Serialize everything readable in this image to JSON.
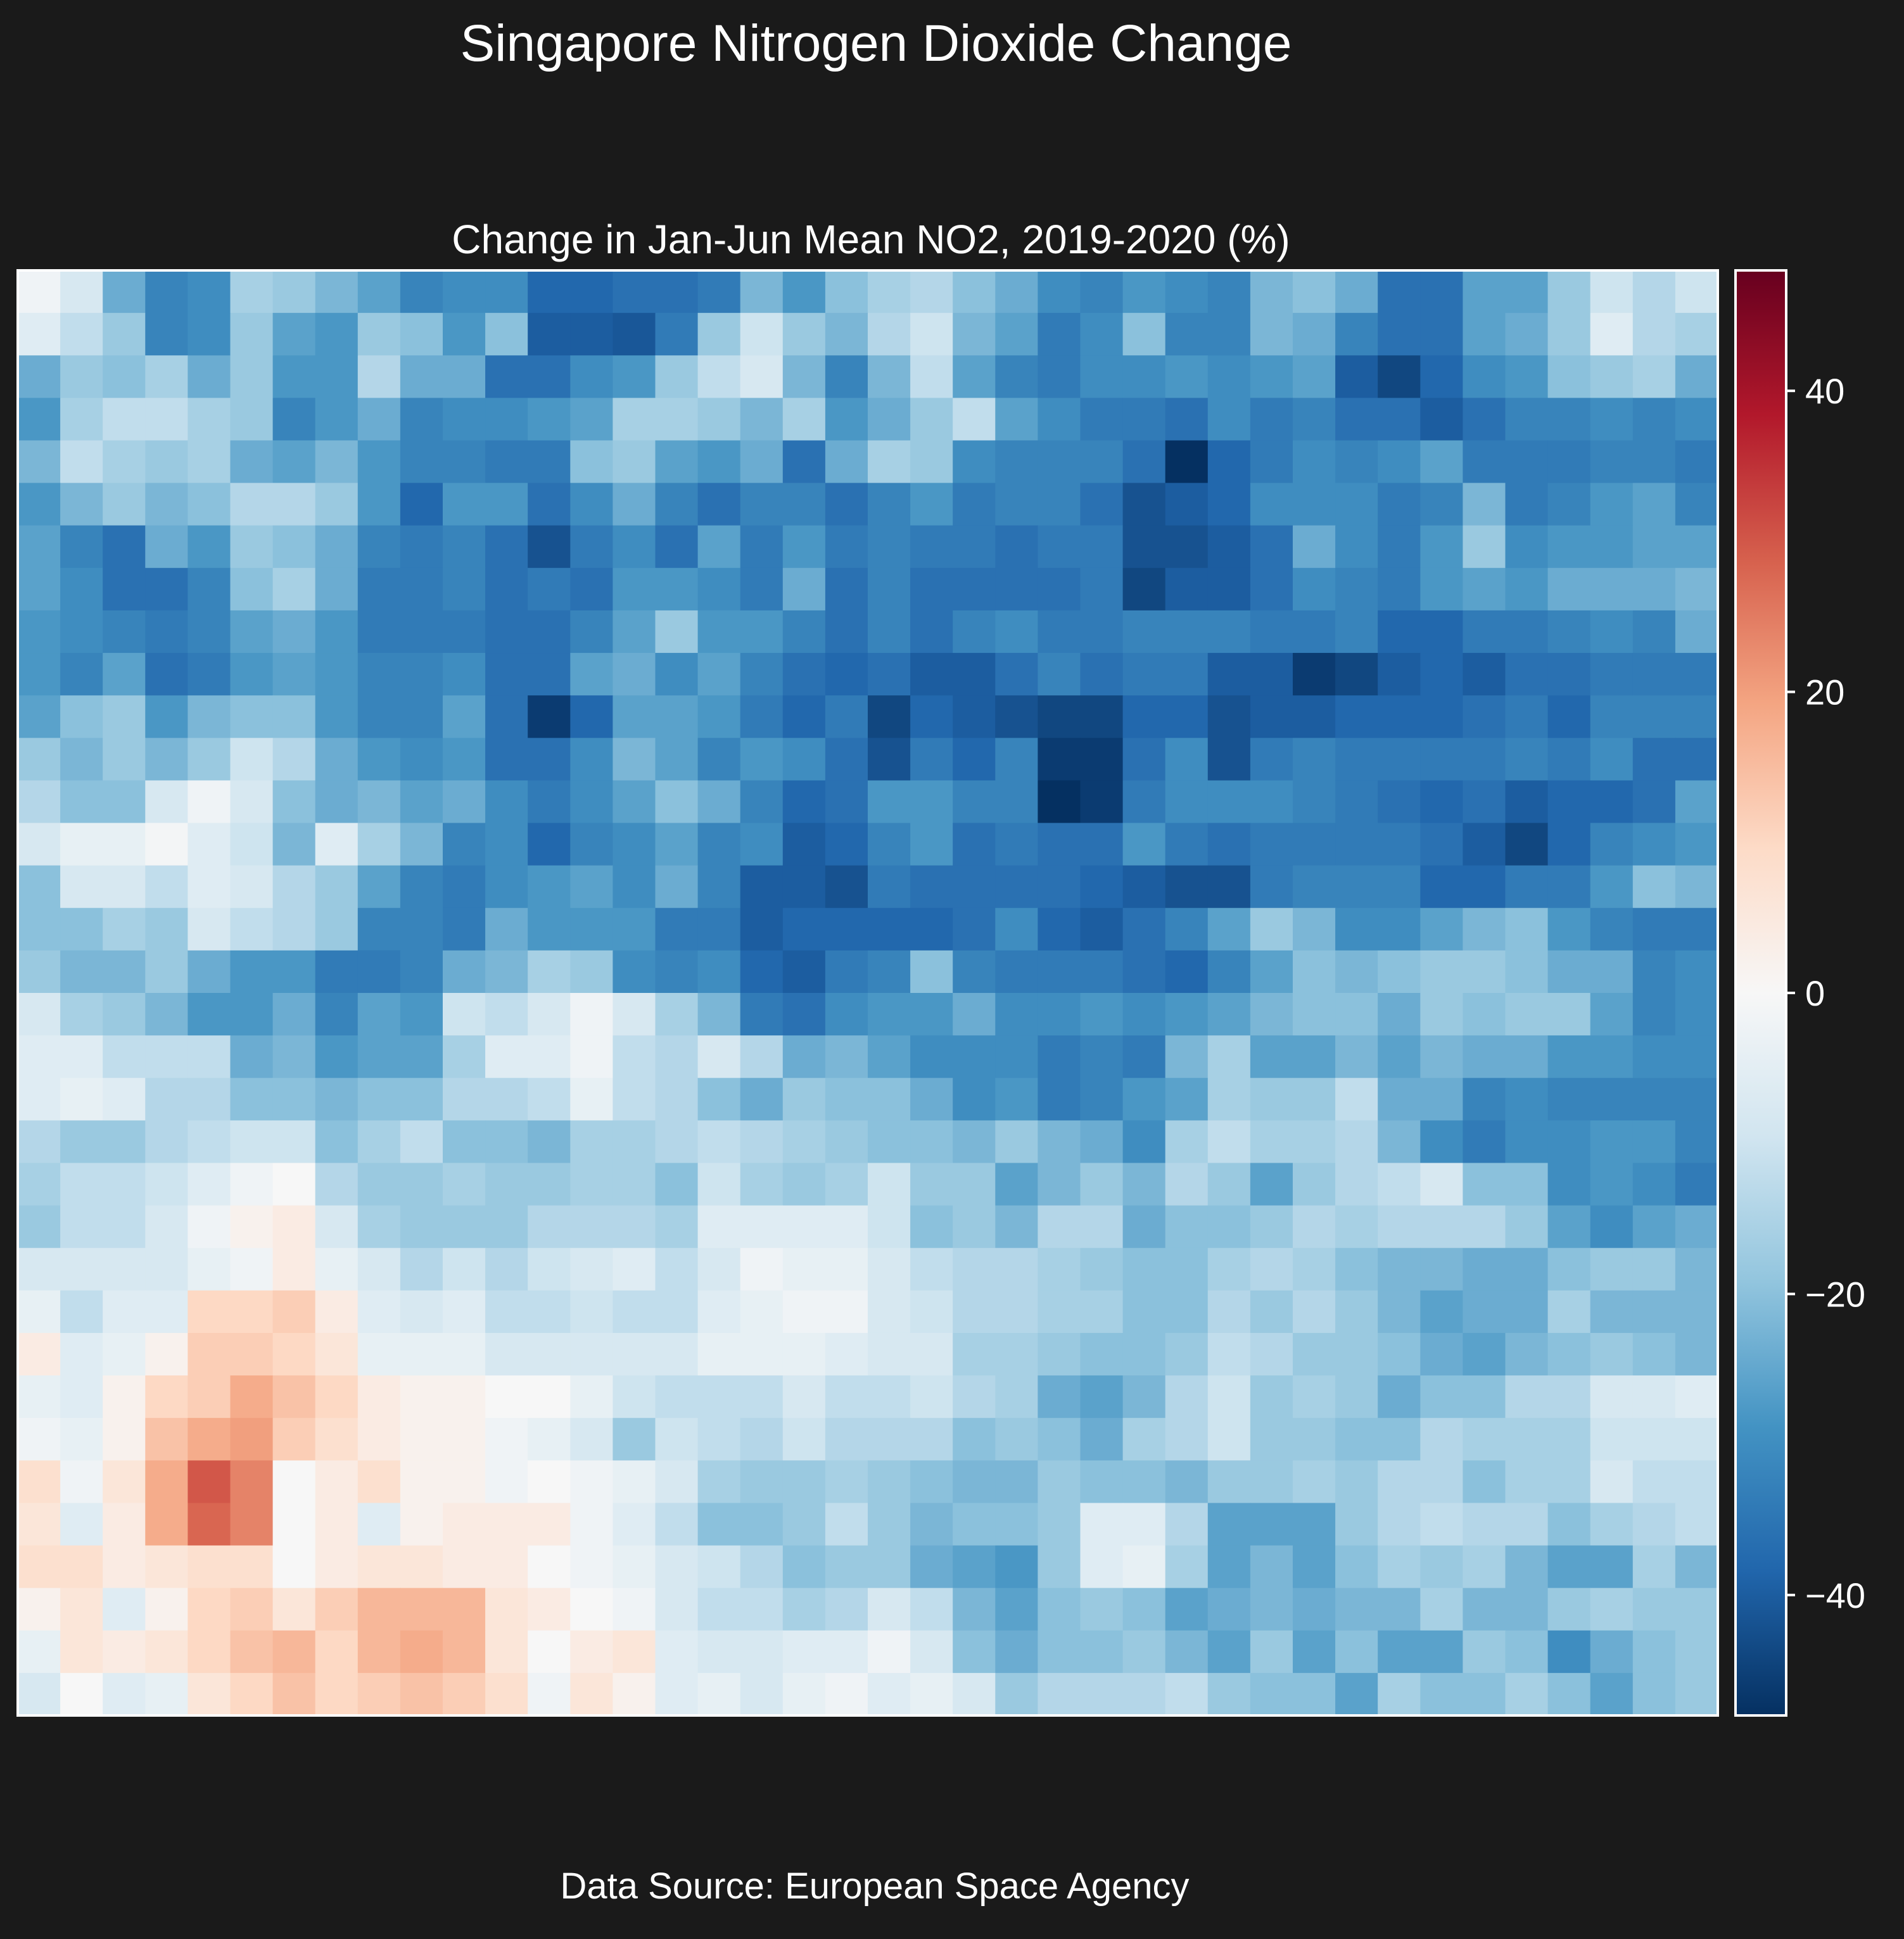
{
  "figure": {
    "suptitle": "Singapore Nitrogen Dioxide Change",
    "footer": "Data Source: European Space Agency",
    "background": "#1a1a1a"
  },
  "chart_data": {
    "type": "heatmap",
    "title": "Change in Jan-Jun Mean NO2, 2019-2020 (%)",
    "xlabel": "",
    "ylabel": "",
    "colormap": "RdBu_r",
    "colormap_stops": [
      "#053061",
      "#2166ac",
      "#4393c3",
      "#92c5de",
      "#d1e5f0",
      "#f7f7f7",
      "#fddbc7",
      "#f4a582",
      "#d6604d",
      "#b2182b",
      "#67001f"
    ],
    "vmin": -48,
    "vmax": 48,
    "colorbar_ticks": [
      -40,
      -20,
      0,
      20,
      40
    ],
    "colorbar_tick_labels": [
      "−40",
      "−20",
      "0",
      "20",
      "40"
    ],
    "grid": false,
    "n_rows": 34,
    "n_cols": 40,
    "values": [
      [
        -2,
        -8,
        -24,
        -32,
        -30,
        -16,
        -18,
        -22,
        -26,
        -32,
        -30,
        -30,
        -38,
        -38,
        -36,
        -36,
        -34,
        -22,
        -28,
        -20,
        -16,
        -14,
        -20,
        -24,
        -30,
        -32,
        -28,
        -30,
        -32,
        -22,
        -20,
        -24,
        -36,
        -36,
        -26,
        -26,
        -18,
        -10,
        -14,
        -10
      ],
      [
        -6,
        -12,
        -18,
        -32,
        -30,
        -18,
        -26,
        -28,
        -18,
        -20,
        -28,
        -20,
        -40,
        -40,
        -41,
        -34,
        -18,
        -10,
        -18,
        -22,
        -14,
        -10,
        -22,
        -26,
        -34,
        -30,
        -20,
        -32,
        -32,
        -22,
        -24,
        -32,
        -36,
        -36,
        -26,
        -24,
        -18,
        -6,
        -14,
        -16
      ],
      [
        -24,
        -18,
        -20,
        -16,
        -24,
        -18,
        -28,
        -28,
        -14,
        -24,
        -24,
        -36,
        -36,
        -30,
        -28,
        -18,
        -12,
        -8,
        -22,
        -32,
        -22,
        -12,
        -26,
        -32,
        -34,
        -30,
        -30,
        -28,
        -30,
        -28,
        -26,
        -40,
        -44,
        -38,
        -30,
        -28,
        -20,
        -18,
        -16,
        -24
      ],
      [
        -28,
        -16,
        -12,
        -12,
        -16,
        -18,
        -32,
        -28,
        -24,
        -32,
        -30,
        -30,
        -28,
        -26,
        -16,
        -16,
        -18,
        -22,
        -16,
        -28,
        -24,
        -18,
        -12,
        -26,
        -30,
        -34,
        -34,
        -36,
        -30,
        -34,
        -32,
        -36,
        -36,
        -40,
        -36,
        -32,
        -32,
        -30,
        -32,
        -30
      ],
      [
        -22,
        -12,
        -16,
        -18,
        -16,
        -24,
        -26,
        -22,
        -28,
        -32,
        -32,
        -34,
        -34,
        -20,
        -18,
        -26,
        -28,
        -24,
        -36,
        -24,
        -16,
        -18,
        -30,
        -32,
        -32,
        -32,
        -36,
        -48,
        -38,
        -34,
        -30,
        -32,
        -30,
        -26,
        -34,
        -34,
        -34,
        -32,
        -32,
        -34
      ],
      [
        -28,
        -22,
        -18,
        -22,
        -20,
        -14,
        -14,
        -18,
        -28,
        -38,
        -28,
        -28,
        -36,
        -30,
        -24,
        -32,
        -36,
        -32,
        -32,
        -36,
        -32,
        -28,
        -34,
        -32,
        -32,
        -36,
        -42,
        -40,
        -38,
        -30,
        -30,
        -30,
        -34,
        -32,
        -22,
        -34,
        -32,
        -28,
        -26,
        -32
      ],
      [
        -26,
        -32,
        -36,
        -24,
        -28,
        -18,
        -20,
        -24,
        -32,
        -34,
        -32,
        -36,
        -42,
        -34,
        -30,
        -36,
        -26,
        -34,
        -28,
        -34,
        -32,
        -34,
        -34,
        -36,
        -34,
        -34,
        -42,
        -42,
        -40,
        -36,
        -24,
        -30,
        -34,
        -28,
        -18,
        -30,
        -28,
        -28,
        -26,
        -26
      ],
      [
        -26,
        -30,
        -36,
        -36,
        -32,
        -20,
        -16,
        -24,
        -34,
        -34,
        -32,
        -36,
        -34,
        -36,
        -28,
        -28,
        -30,
        -34,
        -24,
        -36,
        -32,
        -36,
        -36,
        -36,
        -36,
        -34,
        -44,
        -40,
        -40,
        -36,
        -30,
        -32,
        -34,
        -28,
        -26,
        -28,
        -24,
        -24,
        -24,
        -22
      ],
      [
        -28,
        -30,
        -32,
        -34,
        -32,
        -26,
        -24,
        -28,
        -34,
        -34,
        -34,
        -36,
        -36,
        -32,
        -26,
        -18,
        -28,
        -28,
        -32,
        -36,
        -32,
        -36,
        -32,
        -30,
        -34,
        -34,
        -32,
        -32,
        -32,
        -34,
        -34,
        -32,
        -38,
        -38,
        -34,
        -34,
        -32,
        -30,
        -32,
        -24
      ],
      [
        -28,
        -32,
        -26,
        -36,
        -34,
        -28,
        -26,
        -28,
        -32,
        -32,
        -30,
        -36,
        -36,
        -26,
        -24,
        -30,
        -26,
        -32,
        -36,
        -38,
        -36,
        -40,
        -40,
        -36,
        -32,
        -36,
        -34,
        -34,
        -40,
        -40,
        -46,
        -44,
        -40,
        -38,
        -40,
        -36,
        -36,
        -34,
        -34,
        -34
      ],
      [
        -26,
        -20,
        -18,
        -28,
        -22,
        -20,
        -20,
        -28,
        -32,
        -32,
        -26,
        -36,
        -46,
        -38,
        -26,
        -26,
        -28,
        -34,
        -38,
        -34,
        -44,
        -38,
        -40,
        -42,
        -44,
        -44,
        -38,
        -38,
        -42,
        -40,
        -40,
        -38,
        -38,
        -38,
        -36,
        -34,
        -38,
        -32,
        -32,
        -32
      ],
      [
        -18,
        -22,
        -18,
        -22,
        -18,
        -10,
        -14,
        -24,
        -28,
        -30,
        -28,
        -36,
        -36,
        -30,
        -22,
        -26,
        -32,
        -28,
        -30,
        -36,
        -42,
        -34,
        -38,
        -32,
        -46,
        -46,
        -36,
        -30,
        -42,
        -34,
        -32,
        -34,
        -34,
        -34,
        -34,
        -32,
        -34,
        -30,
        -36,
        -36
      ],
      [
        -14,
        -20,
        -20,
        -8,
        -2,
        -8,
        -20,
        -24,
        -22,
        -26,
        -24,
        -30,
        -34,
        -30,
        -26,
        -20,
        -24,
        -32,
        -38,
        -36,
        -28,
        -28,
        -32,
        -32,
        -48,
        -46,
        -34,
        -30,
        -30,
        -30,
        -32,
        -34,
        -36,
        -38,
        -36,
        -40,
        -38,
        -38,
        -36,
        -26
      ],
      [
        -8,
        -4,
        -4,
        -1,
        -6,
        -10,
        -22,
        -6,
        -16,
        -22,
        -32,
        -30,
        -38,
        -32,
        -30,
        -26,
        -32,
        -30,
        -40,
        -38,
        -32,
        -28,
        -36,
        -34,
        -36,
        -36,
        -28,
        -34,
        -36,
        -34,
        -34,
        -34,
        -34,
        -36,
        -40,
        -44,
        -38,
        -32,
        -30,
        -28
      ],
      [
        -20,
        -8,
        -8,
        -12,
        -6,
        -8,
        -14,
        -18,
        -26,
        -32,
        -34,
        -30,
        -28,
        -26,
        -30,
        -24,
        -32,
        -40,
        -40,
        -42,
        -34,
        -36,
        -36,
        -36,
        -36,
        -38,
        -40,
        -42,
        -42,
        -34,
        -32,
        -32,
        -32,
        -38,
        -38,
        -34,
        -34,
        -28,
        -20,
        -22
      ],
      [
        -20,
        -20,
        -16,
        -18,
        -8,
        -12,
        -14,
        -18,
        -32,
        -32,
        -34,
        -24,
        -28,
        -28,
        -28,
        -34,
        -34,
        -40,
        -38,
        -38,
        -38,
        -38,
        -36,
        -30,
        -38,
        -40,
        -36,
        -32,
        -26,
        -18,
        -22,
        -30,
        -30,
        -26,
        -22,
        -20,
        -28,
        -32,
        -34,
        -34
      ],
      [
        -18,
        -22,
        -22,
        -18,
        -24,
        -28,
        -28,
        -34,
        -34,
        -32,
        -24,
        -22,
        -16,
        -18,
        -30,
        -32,
        -30,
        -38,
        -40,
        -34,
        -32,
        -20,
        -32,
        -34,
        -34,
        -34,
        -36,
        -38,
        -32,
        -26,
        -20,
        -22,
        -20,
        -18,
        -18,
        -20,
        -24,
        -24,
        -32,
        -30
      ],
      [
        -8,
        -16,
        -18,
        -22,
        -28,
        -28,
        -24,
        -32,
        -26,
        -28,
        -10,
        -12,
        -8,
        -2,
        -8,
        -16,
        -22,
        -34,
        -36,
        -30,
        -28,
        -28,
        -24,
        -30,
        -30,
        -28,
        -30,
        -28,
        -26,
        -22,
        -20,
        -20,
        -24,
        -18,
        -20,
        -18,
        -18,
        -26,
        -32,
        -30
      ],
      [
        -6,
        -6,
        -12,
        -12,
        -12,
        -24,
        -22,
        -28,
        -26,
        -26,
        -16,
        -6,
        -6,
        -2,
        -12,
        -14,
        -8,
        -14,
        -24,
        -22,
        -26,
        -30,
        -30,
        -30,
        -34,
        -32,
        -34,
        -22,
        -16,
        -26,
        -26,
        -22,
        -26,
        -22,
        -24,
        -24,
        -28,
        -28,
        -30,
        -30
      ],
      [
        -6,
        -4,
        -6,
        -14,
        -14,
        -20,
        -20,
        -22,
        -20,
        -20,
        -14,
        -14,
        -12,
        -4,
        -12,
        -14,
        -20,
        -24,
        -18,
        -20,
        -20,
        -24,
        -30,
        -28,
        -34,
        -32,
        -28,
        -26,
        -16,
        -18,
        -18,
        -12,
        -24,
        -24,
        -32,
        -30,
        -32,
        -32,
        -32,
        -32
      ],
      [
        -14,
        -18,
        -18,
        -14,
        -12,
        -10,
        -10,
        -20,
        -16,
        -12,
        -20,
        -20,
        -22,
        -16,
        -16,
        -14,
        -12,
        -14,
        -16,
        -18,
        -20,
        -20,
        -22,
        -18,
        -22,
        -24,
        -30,
        -16,
        -12,
        -16,
        -16,
        -14,
        -22,
        -30,
        -34,
        -30,
        -30,
        -28,
        -28,
        -32
      ],
      [
        -16,
        -12,
        -12,
        -10,
        -6,
        -2,
        0,
        -14,
        -18,
        -18,
        -16,
        -18,
        -18,
        -16,
        -16,
        -20,
        -10,
        -16,
        -18,
        -16,
        -10,
        -18,
        -18,
        -26,
        -22,
        -18,
        -22,
        -14,
        -18,
        -26,
        -18,
        -14,
        -12,
        -8,
        -20,
        -20,
        -30,
        -28,
        -30,
        -34
      ],
      [
        -18,
        -12,
        -12,
        -8,
        -2,
        2,
        4,
        -8,
        -16,
        -18,
        -18,
        -18,
        -14,
        -14,
        -14,
        -16,
        -6,
        -6,
        -6,
        -6,
        -10,
        -20,
        -18,
        -22,
        -14,
        -14,
        -24,
        -20,
        -20,
        -18,
        -14,
        -16,
        -14,
        -14,
        -14,
        -18,
        -26,
        -30,
        -26,
        -24
      ],
      [
        -8,
        -8,
        -8,
        -8,
        -4,
        -2,
        4,
        -4,
        -8,
        -14,
        -10,
        -14,
        -10,
        -8,
        -6,
        -12,
        -8,
        -2,
        -4,
        -4,
        -8,
        -12,
        -14,
        -14,
        -16,
        -18,
        -20,
        -20,
        -16,
        -14,
        -16,
        -20,
        -22,
        -22,
        -24,
        -24,
        -20,
        -18,
        -18,
        -22
      ],
      [
        -4,
        -12,
        -6,
        -6,
        10,
        10,
        12,
        4,
        -6,
        -8,
        -6,
        -12,
        -12,
        -10,
        -12,
        -12,
        -6,
        -4,
        -2,
        -2,
        -8,
        -10,
        -14,
        -14,
        -16,
        -16,
        -20,
        -20,
        -14,
        -18,
        -14,
        -18,
        -22,
        -26,
        -24,
        -24,
        -16,
        -22,
        -22,
        -22
      ],
      [
        4,
        -6,
        -4,
        2,
        12,
        12,
        10,
        6,
        -4,
        -4,
        -4,
        -8,
        -8,
        -8,
        -8,
        -8,
        -4,
        -4,
        -4,
        -6,
        -8,
        -8,
        -16,
        -16,
        -18,
        -20,
        -20,
        -18,
        -12,
        -14,
        -18,
        -18,
        -20,
        -24,
        -26,
        -22,
        -20,
        -18,
        -20,
        -22
      ],
      [
        -4,
        -6,
        2,
        10,
        12,
        18,
        14,
        10,
        4,
        2,
        2,
        0,
        0,
        -4,
        -10,
        -12,
        -12,
        -12,
        -8,
        -12,
        -12,
        -10,
        -14,
        -16,
        -24,
        -26,
        -22,
        -14,
        -10,
        -18,
        -16,
        -18,
        -24,
        -20,
        -20,
        -14,
        -14,
        -8,
        -8,
        -6
      ],
      [
        -2,
        -4,
        2,
        14,
        18,
        20,
        12,
        8,
        4,
        2,
        2,
        -2,
        -4,
        -8,
        -18,
        -10,
        -12,
        -14,
        -10,
        -14,
        -14,
        -14,
        -20,
        -18,
        -20,
        -24,
        -16,
        -14,
        -10,
        -18,
        -18,
        -20,
        -20,
        -14,
        -16,
        -16,
        -16,
        -10,
        -10,
        -10
      ],
      [
        8,
        -2,
        6,
        18,
        30,
        24,
        0,
        4,
        8,
        2,
        2,
        -2,
        0,
        -2,
        -4,
        -8,
        -16,
        -18,
        -18,
        -16,
        -18,
        -20,
        -22,
        -22,
        -18,
        -20,
        -20,
        -22,
        -18,
        -18,
        -16,
        -18,
        -14,
        -14,
        -20,
        -16,
        -16,
        -8,
        -12,
        -12
      ],
      [
        6,
        -6,
        4,
        18,
        28,
        24,
        0,
        4,
        -6,
        2,
        4,
        4,
        4,
        -2,
        -6,
        -12,
        -20,
        -20,
        -18,
        -12,
        -18,
        -22,
        -20,
        -20,
        -18,
        -6,
        -6,
        -14,
        -26,
        -26,
        -26,
        -18,
        -14,
        -12,
        -14,
        -14,
        -20,
        -16,
        -14,
        -12
      ],
      [
        8,
        8,
        4,
        6,
        8,
        8,
        0,
        4,
        6,
        6,
        4,
        4,
        0,
        -2,
        -4,
        -8,
        -10,
        -14,
        -20,
        -18,
        -18,
        -24,
        -26,
        -28,
        -18,
        -6,
        -4,
        -16,
        -26,
        -22,
        -26,
        -20,
        -16,
        -18,
        -16,
        -22,
        -26,
        -26,
        -16,
        -22
      ],
      [
        2,
        6,
        -6,
        2,
        10,
        12,
        6,
        12,
        16,
        16,
        16,
        6,
        4,
        0,
        -2,
        -8,
        -12,
        -12,
        -16,
        -14,
        -8,
        -12,
        -22,
        -26,
        -20,
        -18,
        -20,
        -26,
        -24,
        -22,
        -24,
        -22,
        -22,
        -16,
        -22,
        -22,
        -18,
        -16,
        -18,
        -18
      ],
      [
        -4,
        6,
        4,
        6,
        10,
        14,
        16,
        10,
        16,
        18,
        16,
        6,
        0,
        4,
        6,
        -6,
        -8,
        -8,
        -6,
        -6,
        -2,
        -8,
        -20,
        -24,
        -20,
        -20,
        -18,
        -22,
        -26,
        -18,
        -26,
        -20,
        -26,
        -26,
        -18,
        -20,
        -30,
        -24,
        -20,
        -18
      ],
      [
        -8,
        0,
        -6,
        -4,
        6,
        10,
        14,
        10,
        12,
        14,
        12,
        8,
        -2,
        6,
        2,
        -6,
        -4,
        -8,
        -4,
        -2,
        -6,
        -4,
        -8,
        -18,
        -14,
        -14,
        -14,
        -12,
        -18,
        -20,
        -20,
        -26,
        -16,
        -20,
        -20,
        -16,
        -20,
        -26,
        -20,
        -18
      ]
    ]
  }
}
